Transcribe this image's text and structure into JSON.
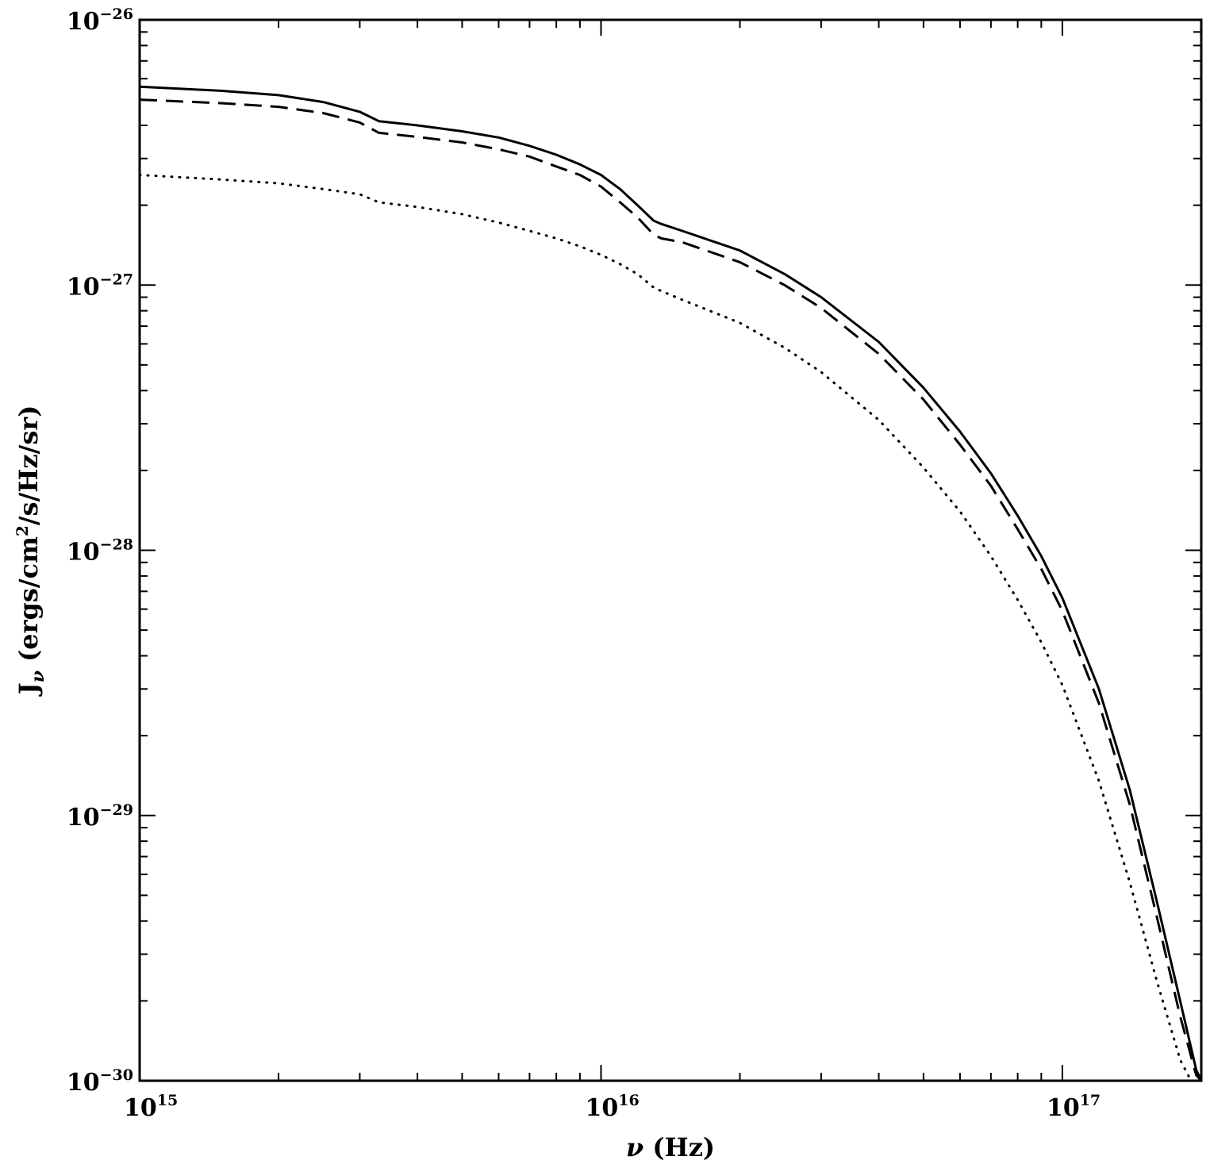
{
  "chart_data": {
    "type": "line",
    "title": "",
    "xlabel_symbol": "ν",
    "xlabel_unit": "(Hz)",
    "ylabel_symbol": "J",
    "ylabel_subscript": "ν",
    "ylabel_unit_a": "(ergs/cm",
    "ylabel_unit_sup": "2",
    "ylabel_unit_b": "/s/Hz/sr)",
    "x_scale": "log",
    "y_scale": "log",
    "xlim": [
      1000000000000000.0,
      2e+17
    ],
    "ylim": [
      1e-30,
      1e-26
    ],
    "grid": false,
    "legend": "none",
    "x_ticks": [
      {
        "base": "10",
        "exp": "15"
      },
      {
        "base": "10",
        "exp": "16"
      },
      {
        "base": "10",
        "exp": "17"
      }
    ],
    "y_ticks": [
      {
        "base": "10",
        "exp": "−30"
      },
      {
        "base": "10",
        "exp": "−29"
      },
      {
        "base": "10",
        "exp": "−28"
      },
      {
        "base": "10",
        "exp": "−27"
      },
      {
        "base": "10",
        "exp": "−26"
      }
    ],
    "series": [
      {
        "style": "solid",
        "x": [
          1000000000000000.0,
          1500000000000000.0,
          2000000000000000.0,
          2500000000000000.0,
          3000000000000000.0,
          3300000000000000.0,
          4000000000000000.0,
          5000000000000000.0,
          6000000000000000.0,
          7000000000000000.0,
          8000000000000000.0,
          9000000000000000.0,
          1e+16,
          1.1e+16,
          1.2e+16,
          1.3e+16,
          1.35e+16,
          1.5e+16,
          2e+16,
          2.5e+16,
          3e+16,
          4e+16,
          5e+16,
          6e+16,
          7e+16,
          8e+16,
          9e+16,
          1e+17,
          1.2e+17,
          1.4e+17,
          1.6e+17,
          1.8e+17,
          1.95e+17,
          2e+17
        ],
        "y": [
          5.6e-27,
          5.4e-27,
          5.2e-27,
          4.9e-27,
          4.5e-27,
          4.15e-27,
          4e-27,
          3.8e-27,
          3.6e-27,
          3.35e-27,
          3.1e-27,
          2.85e-27,
          2.6e-27,
          2.3e-27,
          2e-27,
          1.75e-27,
          1.7e-27,
          1.6e-27,
          1.35e-27,
          1.1e-27,
          9e-28,
          6.1e-28,
          4.1e-28,
          2.8e-28,
          1.95e-28,
          1.35e-28,
          9.5e-29,
          6.6e-29,
          3e-29,
          1.25e-29,
          4.8e-30,
          2e-30,
          1.1e-30,
          1e-30
        ]
      },
      {
        "style": "dashed",
        "x": [
          1000000000000000.0,
          1500000000000000.0,
          2000000000000000.0,
          2500000000000000.0,
          3000000000000000.0,
          3300000000000000.0,
          4000000000000000.0,
          5000000000000000.0,
          6000000000000000.0,
          7000000000000000.0,
          8000000000000000.0,
          9000000000000000.0,
          1e+16,
          1.1e+16,
          1.2e+16,
          1.3e+16,
          1.35e+16,
          1.5e+16,
          2e+16,
          2.5e+16,
          3e+16,
          4e+16,
          5e+16,
          6e+16,
          7e+16,
          8e+16,
          9e+16,
          1e+17,
          1.2e+17,
          1.4e+17,
          1.6e+17,
          1.8e+17,
          1.95e+17,
          2e+17
        ],
        "y": [
          5e-27,
          4.85e-27,
          4.7e-27,
          4.45e-27,
          4.1e-27,
          3.75e-27,
          3.62e-27,
          3.45e-27,
          3.25e-27,
          3.05e-27,
          2.8e-27,
          2.6e-27,
          2.35e-27,
          2.05e-27,
          1.8e-27,
          1.55e-27,
          1.5e-27,
          1.45e-27,
          1.22e-27,
          1e-27,
          8.2e-28,
          5.5e-28,
          3.7e-28,
          2.5e-28,
          1.75e-28,
          1.2e-28,
          8.5e-29,
          5.9e-29,
          2.65e-29,
          1.1e-29,
          4.2e-30,
          1.75e-30,
          1.05e-30,
          1e-30
        ]
      },
      {
        "style": "dotted",
        "x": [
          1000000000000000.0,
          1500000000000000.0,
          2000000000000000.0,
          2500000000000000.0,
          3000000000000000.0,
          3300000000000000.0,
          4000000000000000.0,
          5000000000000000.0,
          6000000000000000.0,
          7000000000000000.0,
          8000000000000000.0,
          9000000000000000.0,
          1e+16,
          1.1e+16,
          1.2e+16,
          1.3e+16,
          1.35e+16,
          1.5e+16,
          2e+16,
          2.5e+16,
          3e+16,
          4e+16,
          5e+16,
          6e+16,
          7e+16,
          8e+16,
          9e+16,
          1e+17,
          1.2e+17,
          1.4e+17,
          1.6e+17,
          1.8e+17,
          1.9e+17
        ],
        "y": [
          2.6e-27,
          2.5e-27,
          2.42e-27,
          2.3e-27,
          2.2e-27,
          2.05e-27,
          1.97e-27,
          1.85e-27,
          1.72e-27,
          1.6e-27,
          1.5e-27,
          1.4e-27,
          1.3e-27,
          1.2e-27,
          1.1e-27,
          9.8e-28,
          9.5e-28,
          8.8e-28,
          7.2e-28,
          5.8e-28,
          4.7e-28,
          3.1e-28,
          2.05e-28,
          1.4e-28,
          9.5e-29,
          6.5e-29,
          4.5e-29,
          3.1e-29,
          1.35e-29,
          5.6e-30,
          2.4e-30,
          1.2e-30,
          1e-30
        ]
      }
    ]
  }
}
